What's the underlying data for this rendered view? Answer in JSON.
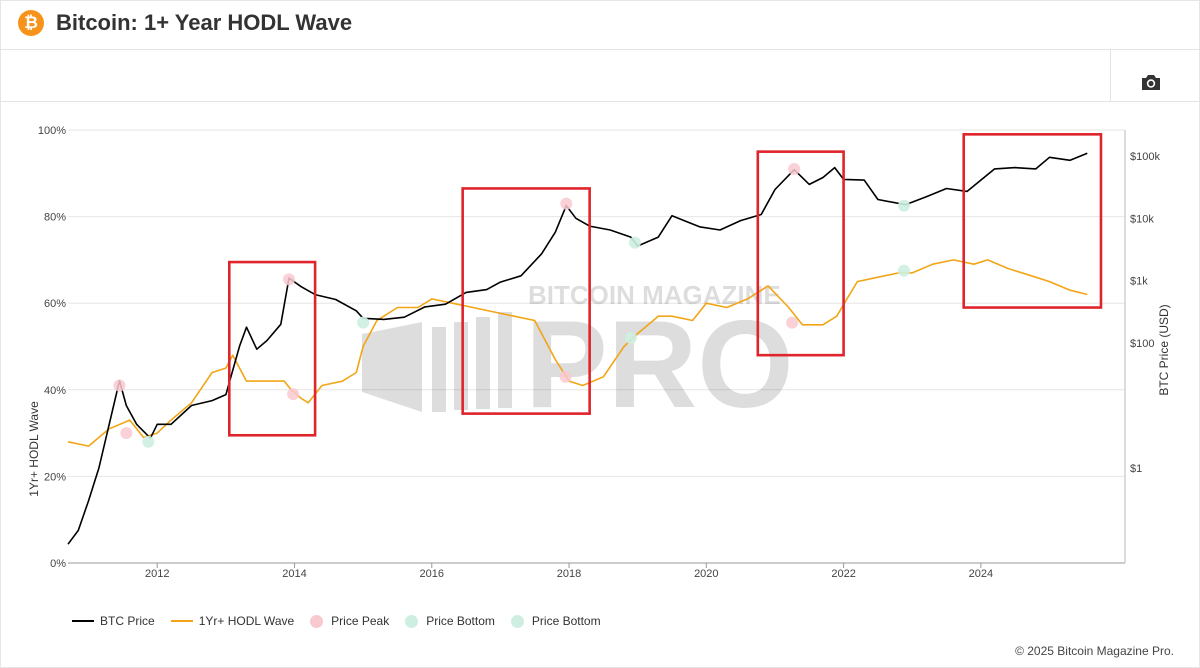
{
  "header": {
    "logo_glyph": "₿",
    "title": "Bitcoin: 1+ Year HODL Wave"
  },
  "toolbar": {
    "screenshot_icon": "camera-icon"
  },
  "watermark": {
    "line1": "BITCOIN MAGAZINE",
    "line2": "PRO"
  },
  "legend": {
    "items": [
      {
        "label": "BTC Price",
        "kind": "line",
        "color": "#000000"
      },
      {
        "label": "1Yr+ HODL Wave",
        "kind": "line",
        "color": "#f2a516"
      },
      {
        "label": "Price Peak",
        "kind": "dot",
        "color": "#f8c9cf"
      },
      {
        "label": "Price Bottom",
        "kind": "dot",
        "color": "#cdeee0"
      },
      {
        "label": "Price Bottom",
        "kind": "dot",
        "color": "#cdeee0"
      }
    ]
  },
  "footer": {
    "copyright": "© 2025 Bitcoin Magazine Pro."
  },
  "chart_data": {
    "type": "line",
    "title": "Bitcoin: 1+ Year HODL Wave",
    "xlabel": "",
    "x_ticks": [
      "2012",
      "2014",
      "2016",
      "2018",
      "2020",
      "2022",
      "2024"
    ],
    "x_range": [
      2010.7,
      2026.1
    ],
    "y_left": {
      "label": "1Yr+ HODL Wave",
      "ticks": [
        "0%",
        "20%",
        "40%",
        "60%",
        "80%",
        "100%"
      ],
      "range": [
        0,
        100
      ]
    },
    "y_right": {
      "label": "BTC Price (USD)",
      "scale": "log",
      "ticks": [
        "$1",
        "$100",
        "$1k",
        "$10k",
        "$100k"
      ],
      "tick_values": [
        1,
        100,
        1000,
        10000,
        100000
      ],
      "range": [
        0.03,
        260000
      ]
    },
    "series": [
      {
        "name": "BTC Price",
        "axis": "right",
        "color": "#000000",
        "x": [
          2010.7,
          2010.85,
          2011.0,
          2011.15,
          2011.3,
          2011.45,
          2011.55,
          2011.7,
          2011.9,
          2012.0,
          2012.2,
          2012.5,
          2012.8,
          2013.0,
          2013.2,
          2013.3,
          2013.45,
          2013.6,
          2013.8,
          2013.92,
          2014.1,
          2014.3,
          2014.6,
          2014.9,
          2015.0,
          2015.3,
          2015.6,
          2015.9,
          2016.2,
          2016.5,
          2016.8,
          2017.0,
          2017.3,
          2017.6,
          2017.8,
          2017.96,
          2018.1,
          2018.3,
          2018.6,
          2018.9,
          2019.0,
          2019.3,
          2019.5,
          2019.7,
          2019.9,
          2020.2,
          2020.5,
          2020.8,
          2021.0,
          2021.28,
          2021.5,
          2021.7,
          2021.87,
          2022.0,
          2022.3,
          2022.5,
          2022.9,
          2023.2,
          2023.5,
          2023.8,
          2024.2,
          2024.5,
          2024.8,
          2025.0,
          2025.3,
          2025.55
        ],
        "y": [
          0.06,
          0.1,
          0.3,
          1.0,
          5.0,
          25.0,
          10.0,
          5.0,
          3.0,
          5.0,
          5.0,
          10.0,
          12.0,
          15.0,
          90.0,
          180.0,
          80.0,
          110.0,
          200.0,
          1100.0,
          800.0,
          600.0,
          500.0,
          330.0,
          250.0,
          240.0,
          260.0,
          380.0,
          420.0,
          650.0,
          720.0,
          950.0,
          1200.0,
          2700.0,
          6000.0,
          16000.0,
          10000.0,
          7500.0,
          6500.0,
          5000.0,
          3600.0,
          5000.0,
          11000.0,
          9000.0,
          7300.0,
          6500.0,
          9200.0,
          11500.0,
          29000.0,
          60000.0,
          35000.0,
          45000.0,
          65000.0,
          42000.0,
          41000.0,
          20000.0,
          16500.0,
          22000.0,
          30000.0,
          27000.0,
          62000.0,
          65000.0,
          62000.0,
          95000.0,
          85000.0,
          110000.0
        ]
      },
      {
        "name": "1Yr+ HODL Wave",
        "axis": "left",
        "color": "#f2a516",
        "x": [
          2010.7,
          2011.0,
          2011.3,
          2011.6,
          2011.8,
          2012.0,
          2012.2,
          2012.5,
          2012.8,
          2013.0,
          2013.1,
          2013.3,
          2013.6,
          2013.85,
          2013.95,
          2014.1,
          2014.2,
          2014.4,
          2014.7,
          2014.9,
          2015.0,
          2015.2,
          2015.5,
          2015.8,
          2016.0,
          2016.3,
          2016.6,
          2016.9,
          2017.2,
          2017.5,
          2017.8,
          2018.0,
          2018.2,
          2018.5,
          2018.8,
          2019.0,
          2019.3,
          2019.5,
          2019.8,
          2020.0,
          2020.3,
          2020.6,
          2020.9,
          2021.2,
          2021.4,
          2021.7,
          2021.9,
          2022.2,
          2022.5,
          2022.8,
          2023.0,
          2023.3,
          2023.6,
          2023.9,
          2024.1,
          2024.4,
          2024.8,
          2025.0,
          2025.3,
          2025.55
        ],
        "y": [
          28.0,
          27.0,
          31.0,
          33.0,
          29.0,
          30.0,
          33.0,
          37.0,
          44.0,
          45.0,
          48.0,
          42.0,
          42.0,
          42.0,
          40.0,
          38.0,
          37.0,
          41.0,
          42.0,
          44.0,
          50.0,
          56.0,
          59.0,
          59.0,
          61.0,
          60.0,
          59.0,
          58.0,
          57.0,
          56.0,
          47.0,
          42.0,
          41.0,
          43.0,
          50.0,
          53.0,
          57.0,
          57.0,
          56.0,
          60.0,
          59.0,
          61.0,
          64.0,
          59.0,
          55.0,
          55.0,
          57.0,
          65.0,
          66.0,
          67.0,
          67.0,
          69.0,
          70.0,
          69.0,
          70.0,
          68.0,
          66.0,
          65.0,
          63.0,
          62.0
        ]
      }
    ],
    "markers": {
      "price_peaks": [
        {
          "x": 2011.45,
          "y": 41
        },
        {
          "x": 2011.55,
          "y": 30
        },
        {
          "x": 2013.92,
          "y": 65.5
        },
        {
          "x": 2013.98,
          "y": 39
        },
        {
          "x": 2017.96,
          "y": 83
        },
        {
          "x": 2017.95,
          "y": 43
        },
        {
          "x": 2021.28,
          "y": 91
        },
        {
          "x": 2021.25,
          "y": 55.5
        }
      ],
      "price_bottoms": [
        {
          "x": 2011.87,
          "y": 28
        },
        {
          "x": 2015.0,
          "y": 55.5
        },
        {
          "x": 2018.96,
          "y": 74
        },
        {
          "x": 2018.9,
          "y": 52
        },
        {
          "x": 2022.88,
          "y": 82.5
        },
        {
          "x": 2022.88,
          "y": 67.5
        }
      ]
    },
    "highlight_boxes": [
      {
        "x0": 2013.05,
        "x1": 2014.3,
        "y0": 29.5,
        "y1": 69.5
      },
      {
        "x0": 2016.45,
        "x1": 2018.3,
        "y0": 34.5,
        "y1": 86.5
      },
      {
        "x0": 2020.75,
        "x1": 2022.0,
        "y0": 48.0,
        "y1": 95.0
      },
      {
        "x0": 2023.75,
        "x1": 2025.75,
        "y0": 59.0,
        "y1": 99.0
      }
    ],
    "grid": true,
    "legend_position": "bottom-left"
  }
}
